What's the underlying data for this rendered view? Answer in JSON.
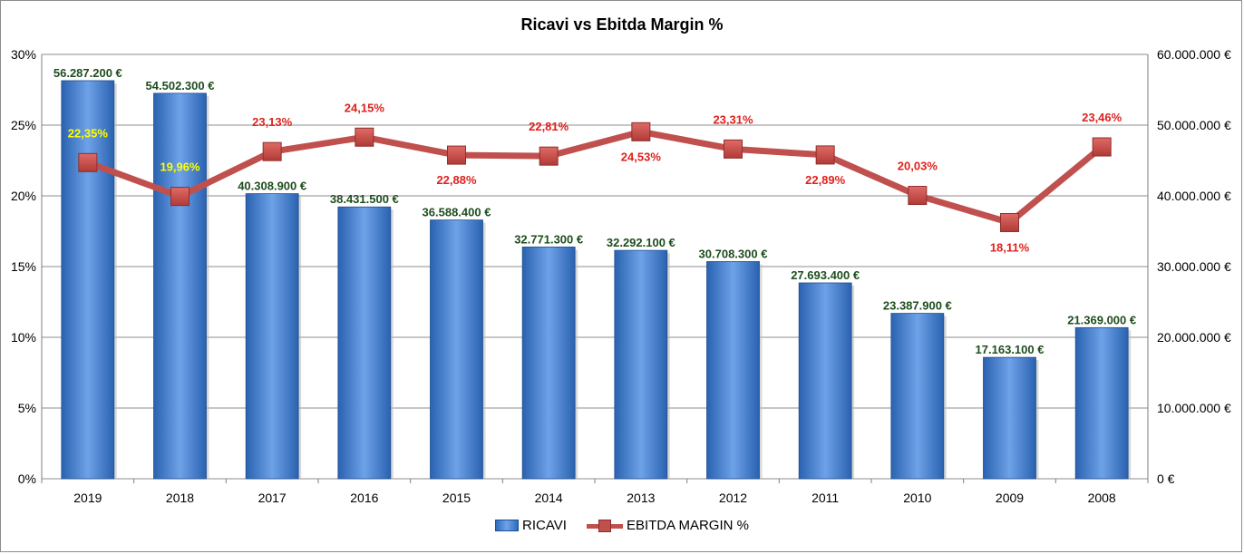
{
  "chart_data": {
    "type": "bar",
    "title": "Ricavi vs Ebitda Margin %",
    "categories": [
      "2019",
      "2018",
      "2017",
      "2016",
      "2015",
      "2014",
      "2013",
      "2012",
      "2011",
      "2010",
      "2009",
      "2008"
    ],
    "series": [
      {
        "name": "RICAVI",
        "type": "bar",
        "axis": "right",
        "color": "#4f81bd",
        "values": [
          56287200,
          54502300,
          40308900,
          38431500,
          36588400,
          32771300,
          32292100,
          30708300,
          27693400,
          23387900,
          17163100,
          21369000
        ],
        "labels": [
          "56.287.200 €",
          "54.502.300 €",
          "40.308.900 €",
          "38.431.500 €",
          "36.588.400 €",
          "32.771.300 €",
          "32.292.100 €",
          "30.708.300 €",
          "27.693.400 €",
          "23.387.900 €",
          "17.163.100 €",
          "21.369.000 €"
        ]
      },
      {
        "name": "EBITDA MARGIN %",
        "type": "line",
        "axis": "left",
        "color": "#c0504d",
        "values": [
          22.35,
          19.96,
          23.13,
          24.15,
          22.88,
          22.81,
          24.53,
          23.31,
          22.89,
          20.03,
          18.11,
          23.46
        ],
        "labels": [
          "22,35%",
          "19,96%",
          "23,13%",
          "24,15%",
          "22,88%",
          "22,81%",
          "24,53%",
          "23,31%",
          "22,89%",
          "20,03%",
          "18,11%",
          "23,46%"
        ],
        "label_colors": [
          "#ffff00",
          "#ffff00",
          "#e0201c",
          "#e0201c",
          "#e0201c",
          "#e0201c",
          "#e0201c",
          "#e0201c",
          "#e0201c",
          "#e0201c",
          "#e0201c",
          "#e0201c"
        ],
        "label_position": [
          "above",
          "above",
          "above",
          "above",
          "below",
          "above",
          "below",
          "above",
          "below",
          "above",
          "below",
          "above"
        ]
      }
    ],
    "y_left": {
      "lim": [
        0,
        30
      ],
      "ticks": [
        "0%",
        "5%",
        "10%",
        "15%",
        "20%",
        "25%",
        "30%"
      ]
    },
    "y_right": {
      "lim": [
        0,
        60000000
      ],
      "ticks": [
        "0 €",
        "10.000.000 €",
        "20.000.000 €",
        "30.000.000 €",
        "40.000.000 €",
        "50.000.000 €",
        "60.000.000 €"
      ]
    },
    "grid": true,
    "legend_position": "bottom"
  }
}
